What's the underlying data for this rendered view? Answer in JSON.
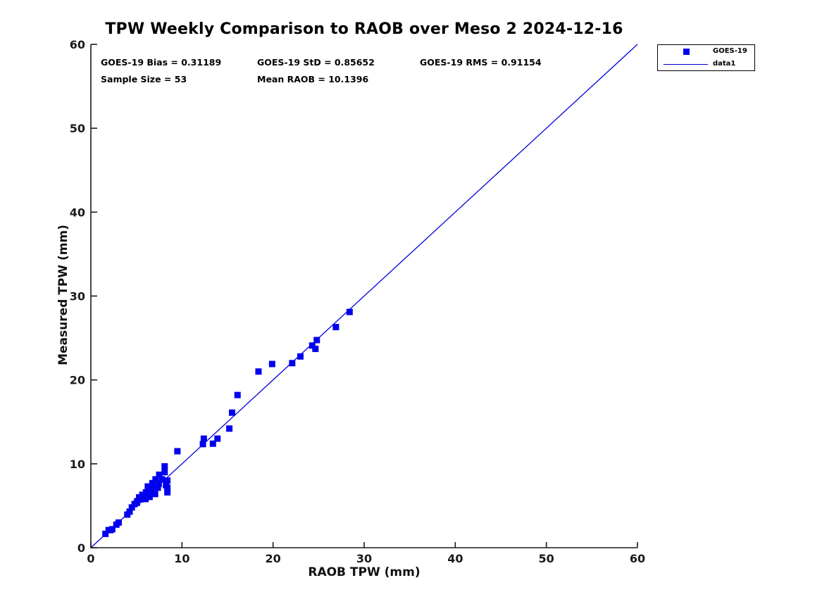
{
  "figure": {
    "stats": {
      "bias": "GOES-19 Bias = 0.31189",
      "std": "GOES-19 StD = 0.85652",
      "rms": "GOES-19 RMS = 0.91154",
      "sample_size": "Sample Size = 53",
      "mean_raob": "Mean RAOB = 10.1396"
    },
    "legend": {
      "entries": [
        {
          "label": "GOES-19",
          "swatch": "square-marker"
        },
        {
          "label": "data1",
          "swatch": "line"
        }
      ]
    }
  },
  "colors": {
    "marker_blue": "#0000EE",
    "line_blue": "#0000DD",
    "axis": "#1a1a1a",
    "text": "#000000"
  },
  "chart_data": {
    "type": "scatter",
    "title": "TPW Weekly Comparison to RAOB over Meso 2 2024-12-16",
    "xlabel": "RAOB TPW (mm)",
    "ylabel": "Measured TPW (mm)",
    "xlim": [
      0,
      60
    ],
    "ylim": [
      0,
      60
    ],
    "xticks": [
      0,
      10,
      20,
      30,
      40,
      50,
      60
    ],
    "yticks": [
      0,
      10,
      20,
      30,
      40,
      50,
      60
    ],
    "grid": false,
    "legend_position": "northeast-outside",
    "annotations": [
      "GOES-19 Bias = 0.31189",
      "GOES-19 StD = 0.85652",
      "GOES-19 RMS = 0.91154",
      "Sample Size = 53",
      "Mean RAOB = 10.1396"
    ],
    "series": [
      {
        "name": "GOES-19",
        "type": "scatter",
        "marker": "square",
        "color": "#0000EE",
        "points": [
          [
            1.6,
            1.65
          ],
          [
            1.95,
            2.1
          ],
          [
            2.15,
            2.1
          ],
          [
            2.35,
            2.2
          ],
          [
            2.8,
            2.75
          ],
          [
            3.05,
            3.0
          ],
          [
            4.0,
            3.95
          ],
          [
            4.25,
            4.3
          ],
          [
            4.5,
            4.8
          ],
          [
            4.8,
            5.2
          ],
          [
            5.05,
            5.35
          ],
          [
            5.1,
            5.55
          ],
          [
            5.3,
            6.0
          ],
          [
            5.4,
            5.75
          ],
          [
            5.65,
            6.3
          ],
          [
            5.8,
            6.2
          ],
          [
            6.0,
            5.8
          ],
          [
            6.05,
            6.6
          ],
          [
            6.3,
            6.75
          ],
          [
            6.45,
            6.05
          ],
          [
            6.25,
            7.3
          ],
          [
            6.7,
            6.8
          ],
          [
            6.7,
            7.0
          ],
          [
            6.75,
            7.7
          ],
          [
            7.05,
            6.4
          ],
          [
            7.1,
            8.15
          ],
          [
            7.35,
            7.15
          ],
          [
            7.45,
            7.6
          ],
          [
            7.5,
            8.7
          ],
          [
            7.8,
            8.15
          ],
          [
            8.1,
            9.0
          ],
          [
            8.1,
            9.7
          ],
          [
            8.25,
            7.45
          ],
          [
            8.4,
            8.0
          ],
          [
            8.4,
            7.15
          ],
          [
            8.4,
            6.6
          ],
          [
            9.5,
            11.5
          ],
          [
            12.3,
            12.35
          ],
          [
            12.4,
            13.0
          ],
          [
            13.4,
            12.4
          ],
          [
            13.9,
            13.0
          ],
          [
            15.2,
            14.2
          ],
          [
            15.5,
            16.1
          ],
          [
            16.1,
            18.2
          ],
          [
            18.4,
            21.0
          ],
          [
            19.9,
            21.9
          ],
          [
            22.1,
            22.0
          ],
          [
            23.0,
            22.8
          ],
          [
            24.3,
            24.1
          ],
          [
            24.65,
            23.7
          ],
          [
            24.8,
            24.75
          ],
          [
            26.9,
            26.3
          ],
          [
            28.4,
            28.1
          ]
        ]
      },
      {
        "name": "data1",
        "type": "line",
        "color": "#0000DD",
        "points": [
          [
            0,
            0
          ],
          [
            60,
            60
          ]
        ]
      }
    ]
  }
}
